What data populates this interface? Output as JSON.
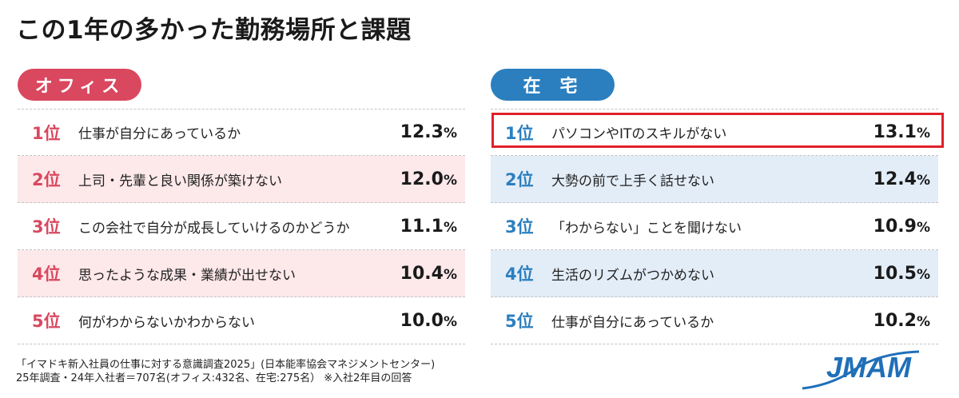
{
  "title": "この1年の多かった勤務場所と課題",
  "office": {
    "label": "オフィス",
    "items": [
      {
        "rank": "1位",
        "text": "仕事が自分にあっているか",
        "value": "12.3",
        "unit": "%"
      },
      {
        "rank": "2位",
        "text": "上司・先輩と良い関係が築けない",
        "value": "12.0",
        "unit": "%"
      },
      {
        "rank": "3位",
        "text": "この会社で自分が成長していけるのかどうか",
        "value": "11.1",
        "unit": "%"
      },
      {
        "rank": "4位",
        "text": "思ったような成果・業績が出せない",
        "value": "10.4",
        "unit": "%"
      },
      {
        "rank": "5位",
        "text": "何がわからないかわからない",
        "value": "10.0",
        "unit": "%"
      }
    ]
  },
  "home": {
    "label": "在宅",
    "items": [
      {
        "rank": "1位",
        "text": "パソコンやITのスキルがない",
        "value": "13.1",
        "unit": "%"
      },
      {
        "rank": "2位",
        "text": "大勢の前で上手く話せない",
        "value": "12.4",
        "unit": "%"
      },
      {
        "rank": "3位",
        "text": "「わからない」ことを聞けない",
        "value": "10.9",
        "unit": "%"
      },
      {
        "rank": "4位",
        "text": "生活のリズムがつかめない",
        "value": "10.5",
        "unit": "%"
      },
      {
        "rank": "5位",
        "text": "仕事が自分にあっているか",
        "value": "10.2",
        "unit": "%"
      }
    ]
  },
  "footer": {
    "line1": "「イマドキ新入社員の仕事に対する意識調査2025」(日本能率協会マネジメントセンター)",
    "line2": "25年調査・24年入社者＝707名(オフィス:432名、在宅:275名） ※入社2年目の回答"
  },
  "logo": {
    "text": "JMAM",
    "color": "#1f6fb8"
  },
  "colors": {
    "office_accent": "#d9485f",
    "home_accent": "#2b7fbf",
    "highlight": "#e0202a"
  }
}
